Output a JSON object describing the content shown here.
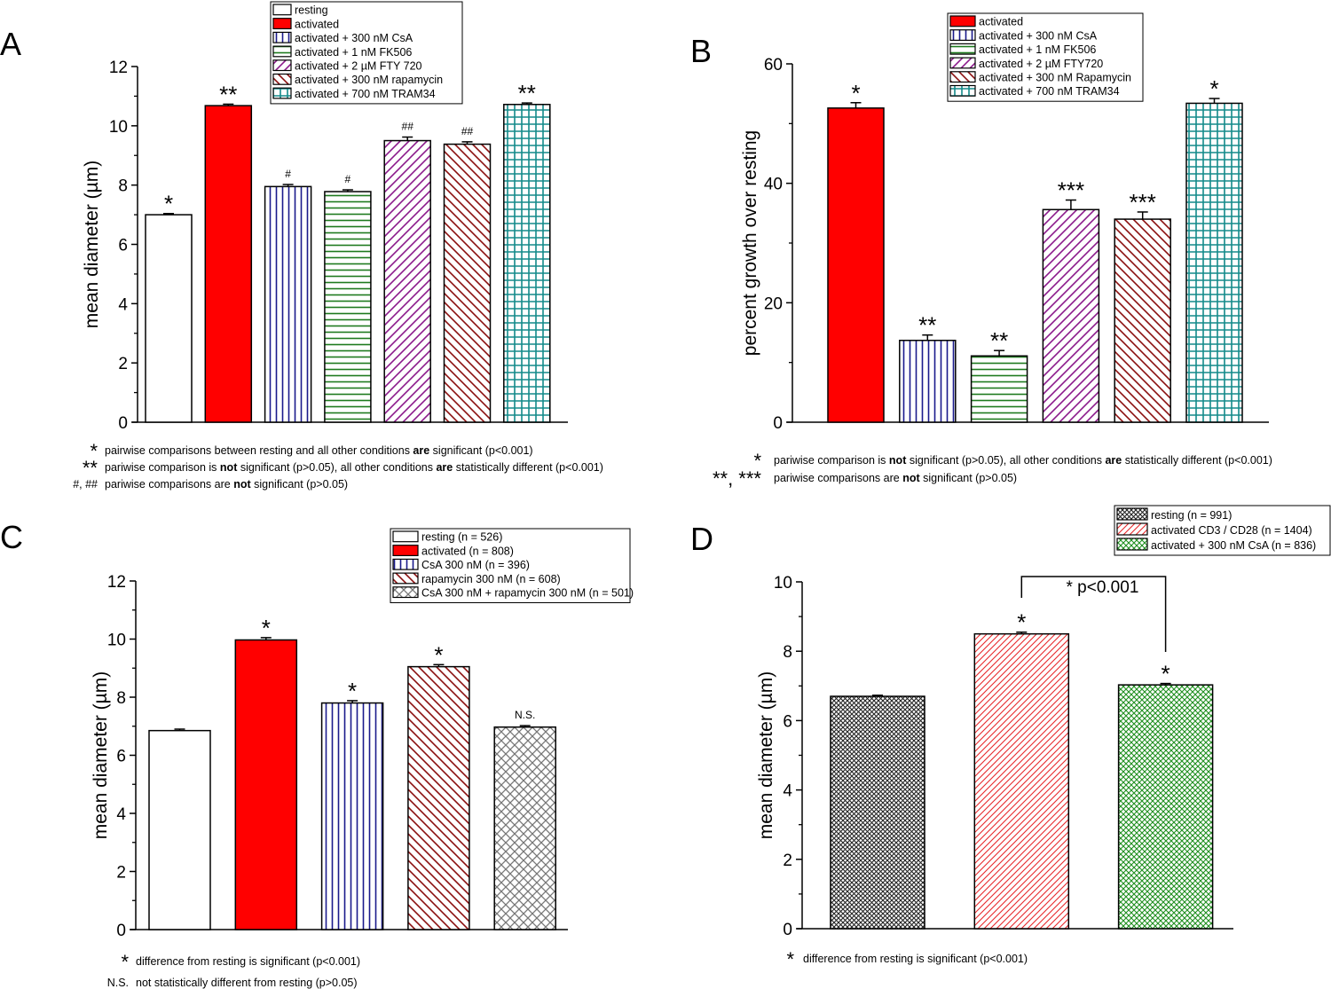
{
  "chart_data": [
    {
      "panel": "A",
      "type": "bar",
      "title": "",
      "xlabel": "",
      "ylabel": "mean diameter (µm)",
      "ylim": [
        0,
        12
      ],
      "yticks": [
        0,
        2,
        4,
        6,
        8,
        10,
        12
      ],
      "grid": false,
      "legend_position": "top-center",
      "categories": [
        "resting",
        "activated",
        "activated + 300 nM CsA",
        "activated + 1 nM FK506",
        "activated + 2 µM FTY 720",
        "activated + 300 nM rapamycin",
        "activated + 700 nM TRAM34"
      ],
      "values": [
        7.0,
        10.68,
        7.95,
        7.78,
        9.5,
        9.38,
        10.72
      ],
      "errors": [
        0.04,
        0.05,
        0.07,
        0.06,
        0.12,
        0.08,
        0.05
      ],
      "fills": [
        "white",
        "solid-red",
        "vertical-blue",
        "horizontal-green",
        "diag-up-purple",
        "diag-down-maroon",
        "grid-teal"
      ],
      "annotations": [
        "*",
        "**",
        "#",
        "#",
        "##",
        "##",
        "**"
      ],
      "notes": [
        {
          "symbol": "*",
          "text_before": "pairwise comparisons between resting and all other conditions ",
          "bold": "are",
          "text_after": " significant (p<0.001)"
        },
        {
          "symbol": "**",
          "text_before": "pariwise comparison is ",
          "bold": "not",
          "text_after": " significant (p>0.05), all other conditions ",
          "bold2": "are",
          "text_after2": " statistically different (p<0.001)"
        },
        {
          "symbol": "#, ##",
          "text_before": "pariwise comparisons are ",
          "bold": "not",
          "text_after": " significant (p>0.05)"
        }
      ]
    },
    {
      "panel": "B",
      "type": "bar",
      "title": "",
      "xlabel": "",
      "ylabel": "percent growth over resting",
      "ylim": [
        0,
        60
      ],
      "yticks": [
        0,
        20,
        40,
        60
      ],
      "grid": false,
      "legend_position": "top-right",
      "categories": [
        "activated",
        "activated + 300 nM CsA",
        "activated + 1 nM FK506",
        "activated + 2 µM FTY720",
        "activated + 300 nM Rapamycin",
        "activated + 700 nM TRAM34"
      ],
      "values": [
        52.6,
        13.7,
        11.1,
        35.6,
        34.0,
        53.4
      ],
      "errors": [
        0.9,
        0.9,
        0.9,
        1.6,
        1.2,
        0.8
      ],
      "fills": [
        "solid-red",
        "vertical-blue",
        "horizontal-green",
        "diag-up-purple",
        "diag-down-maroon",
        "grid-teal"
      ],
      "annotations": [
        "*",
        "**",
        "**",
        "***",
        "***",
        "*"
      ],
      "notes": [
        {
          "symbol": "*",
          "text_before": "pariwise comparison is ",
          "bold": "not",
          "text_after": " significant (p>0.05), all other conditions ",
          "bold2": "are",
          "text_after2": " statistically different (p<0.001)"
        },
        {
          "symbol": "**, ***",
          "text_before": "pariwise comparisons are ",
          "bold": "not",
          "text_after": " significant (p>0.05)"
        }
      ]
    },
    {
      "panel": "C",
      "type": "bar",
      "title": "",
      "xlabel": "",
      "ylabel": "mean diameter (µm)",
      "ylim": [
        0,
        12
      ],
      "yticks": [
        0,
        2,
        4,
        6,
        8,
        10,
        12
      ],
      "grid": false,
      "legend_position": "top-right",
      "categories": [
        "resting (n = 526)",
        "activated (n = 808)",
        "CsA 300 nM (n = 396)",
        "rapamycin 300 nM (n = 608)",
        "CsA 300 nM + rapamycin 300 nM (n = 501)"
      ],
      "values": [
        6.85,
        9.97,
        7.8,
        9.05,
        6.97
      ],
      "errors": [
        0.05,
        0.08,
        0.08,
        0.07,
        0.05
      ],
      "fills": [
        "white",
        "solid-red",
        "vertical-blue",
        "diag-down-maroon",
        "cross-gray"
      ],
      "annotations": [
        "",
        "*",
        "*",
        "*",
        "N.S."
      ],
      "notes": [
        {
          "symbol": "*",
          "text_before": "difference from resting is significant (p<0.001)"
        },
        {
          "symbol": "N.S.",
          "text_before": "not statistically different from resting (p>0.05)"
        }
      ]
    },
    {
      "panel": "D",
      "type": "bar",
      "title": "",
      "xlabel": "",
      "ylabel": "mean diameter (µm)",
      "ylim": [
        0,
        10
      ],
      "yticks": [
        0,
        2,
        4,
        6,
        8,
        10
      ],
      "grid": false,
      "legend_position": "top-right",
      "categories": [
        "resting (n = 991)",
        "activated CD3 / CD28 (n = 1404)",
        "activated + 300 nM CsA (n = 836)"
      ],
      "values": [
        6.7,
        8.5,
        7.03
      ],
      "errors": [
        0.03,
        0.05,
        0.04
      ],
      "fills": [
        "fine-cross-black",
        "fine-diag-red",
        "fine-cross-green"
      ],
      "annotations": [
        "",
        "*",
        "*"
      ],
      "bracket": {
        "from": 1,
        "to": 2,
        "label": "* p<0.001"
      },
      "notes": [
        {
          "symbol": "*",
          "text_before": "difference from resting is significant (p<0.001)"
        }
      ]
    }
  ]
}
